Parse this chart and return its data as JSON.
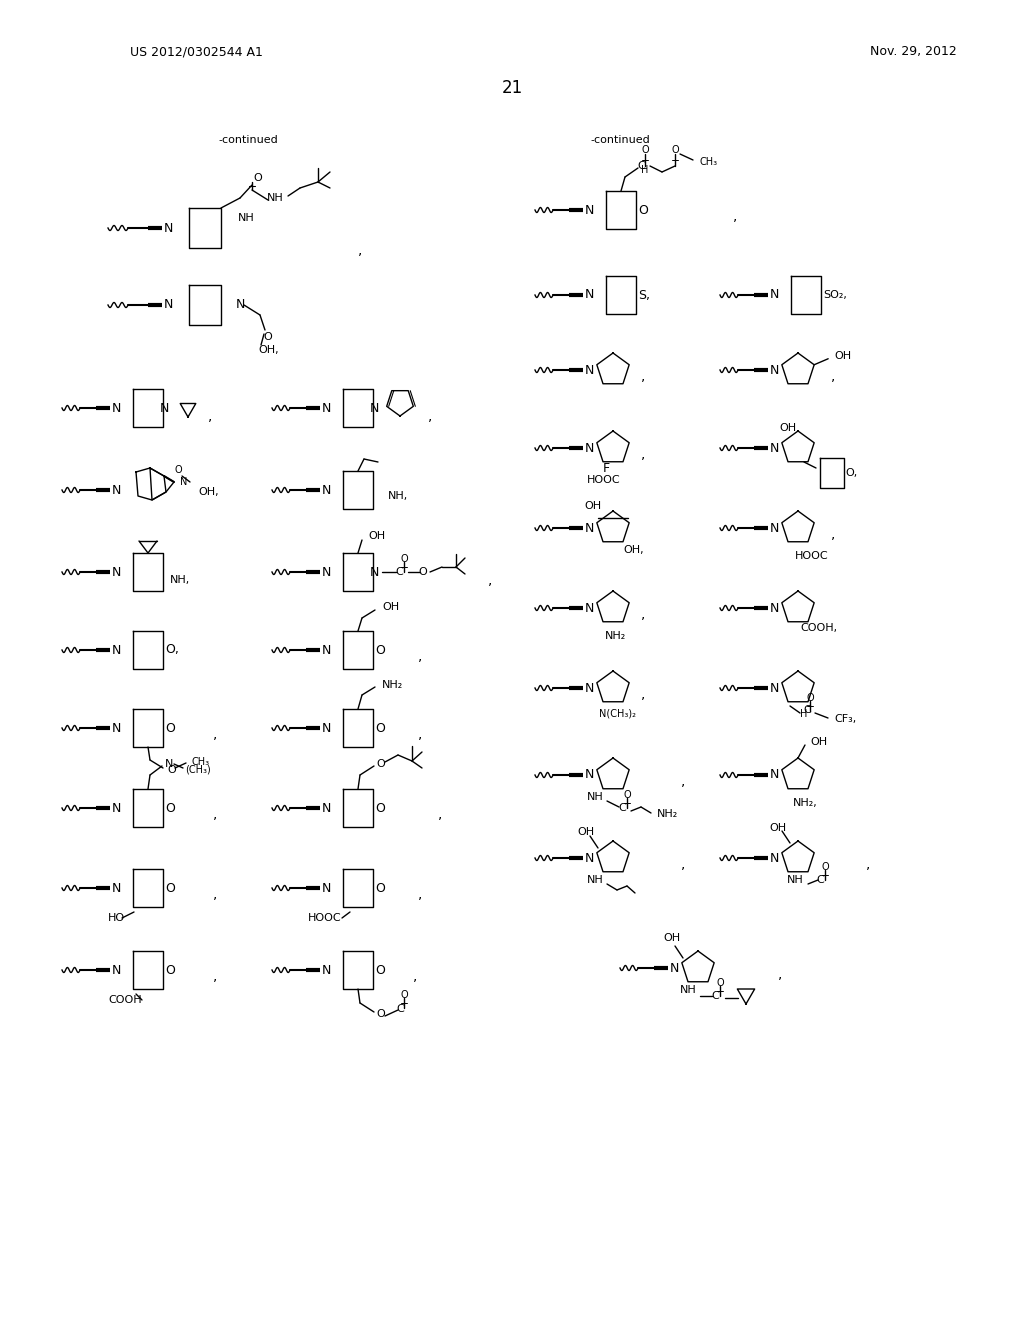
{
  "patent_number": "US 2012/0302544 A1",
  "date": "Nov. 29, 2012",
  "page_number": "21",
  "bg_color": "#ffffff",
  "text_color": "#000000"
}
